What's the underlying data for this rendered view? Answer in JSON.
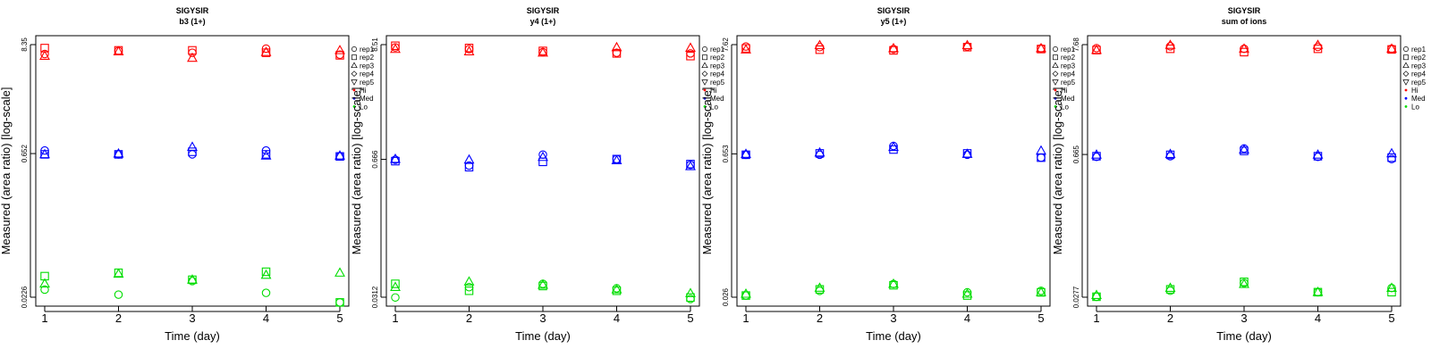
{
  "chart_data": [
    {
      "type": "scatter",
      "title": "SIGYSIR",
      "subtitle": "b3 (1+)",
      "xlabel": "Time (day)",
      "ylabel": "Measured (area ratio) [log-scale]",
      "x": [
        1,
        2,
        3,
        4,
        5
      ],
      "yscale": "log",
      "ylim": [
        0.0226,
        8.35
      ],
      "yticks": [
        "0.0226",
        "0.652",
        "8.35"
      ],
      "series": [
        {
          "group": "Hi",
          "rep": "rep1",
          "values": [
            6.7,
            7.2,
            6.9,
            7.6,
            6.6
          ]
        },
        {
          "group": "Hi",
          "rep": "rep2",
          "values": [
            7.7,
            7.3,
            7.3,
            6.9,
            6.5
          ]
        },
        {
          "group": "Hi",
          "rep": "rep3",
          "values": [
            6.4,
            7.1,
            6.1,
            7.0,
            7.3
          ]
        },
        {
          "group": "Med",
          "rep": "rep1",
          "values": [
            0.7,
            0.64,
            0.64,
            0.7,
            0.61
          ]
        },
        {
          "group": "Med",
          "rep": "rep2",
          "values": [
            0.64,
            0.64,
            0.68,
            0.64,
            0.61
          ]
        },
        {
          "group": "Med",
          "rep": "rep3",
          "values": [
            0.64,
            0.65,
            0.76,
            0.62,
            0.62
          ]
        },
        {
          "group": "Lo",
          "rep": "rep1",
          "values": [
            0.027,
            0.024,
            0.033,
            0.025,
            0.02
          ]
        },
        {
          "group": "Lo",
          "rep": "rep2",
          "values": [
            0.037,
            0.04,
            0.034,
            0.041,
            0.02
          ]
        },
        {
          "group": "Lo",
          "rep": "rep3",
          "values": [
            0.031,
            0.039,
            0.034,
            0.038,
            0.04
          ]
        }
      ]
    },
    {
      "type": "scatter",
      "title": "SIGYSIR",
      "subtitle": "y4 (1+)",
      "xlabel": "Time (day)",
      "ylabel": "Measured (area ratio) [log-scale]",
      "x": [
        1,
        2,
        3,
        4,
        5
      ],
      "yscale": "log",
      "ylim": [
        0.0312,
        8.51
      ],
      "yticks": [
        "0.0312",
        "0.666",
        "8.51"
      ],
      "series": [
        {
          "group": "Hi",
          "rep": "rep1",
          "values": [
            8.0,
            7.7,
            7.2,
            7.1,
            7.0
          ]
        },
        {
          "group": "Hi",
          "rep": "rep2",
          "values": [
            8.3,
            7.9,
            7.4,
            7.0,
            6.6
          ]
        },
        {
          "group": "Hi",
          "rep": "rep3",
          "values": [
            7.7,
            7.3,
            7.1,
            8.0,
            7.9
          ]
        },
        {
          "group": "Med",
          "rep": "rep1",
          "values": [
            0.66,
            0.58,
            0.74,
            0.67,
            0.59
          ]
        },
        {
          "group": "Med",
          "rep": "rep2",
          "values": [
            0.64,
            0.56,
            0.63,
            0.67,
            0.6
          ]
        },
        {
          "group": "Med",
          "rep": "rep3",
          "values": [
            0.67,
            0.66,
            0.7,
            0.65,
            0.57
          ]
        },
        {
          "group": "Lo",
          "rep": "rep1",
          "values": [
            0.031,
            0.039,
            0.042,
            0.038,
            0.03
          ]
        },
        {
          "group": "Lo",
          "rep": "rep2",
          "values": [
            0.042,
            0.036,
            0.04,
            0.036,
            0.031
          ]
        },
        {
          "group": "Lo",
          "rep": "rep3",
          "values": [
            0.039,
            0.044,
            0.041,
            0.037,
            0.034
          ]
        }
      ]
    },
    {
      "type": "scatter",
      "title": "SIGYSIR",
      "subtitle": "y5 (1+)",
      "xlabel": "Time (day)",
      "ylabel": "Measured (area ratio) [log-scale]",
      "x": [
        1,
        2,
        3,
        4,
        5
      ],
      "yscale": "log",
      "ylim": [
        0.026,
        7.62
      ],
      "yticks": [
        "0.026",
        "0.653",
        "7.62"
      ],
      "series": [
        {
          "group": "Hi",
          "rep": "rep1",
          "values": [
            7.3,
            7.2,
            6.9,
            7.3,
            7.0
          ]
        },
        {
          "group": "Hi",
          "rep": "rep2",
          "values": [
            7.0,
            6.8,
            6.7,
            7.2,
            6.9
          ]
        },
        {
          "group": "Hi",
          "rep": "rep3",
          "values": [
            6.8,
            7.5,
            7.0,
            7.5,
            7.0
          ]
        },
        {
          "group": "Med",
          "rep": "rep1",
          "values": [
            0.64,
            0.64,
            0.78,
            0.64,
            0.6
          ]
        },
        {
          "group": "Med",
          "rep": "rep2",
          "values": [
            0.64,
            0.66,
            0.72,
            0.66,
            0.6
          ]
        },
        {
          "group": "Med",
          "rep": "rep3",
          "values": [
            0.65,
            0.67,
            0.76,
            0.65,
            0.7
          ]
        },
        {
          "group": "Lo",
          "rep": "rep1",
          "values": [
            0.027,
            0.03,
            0.035,
            0.029,
            0.03
          ]
        },
        {
          "group": "Lo",
          "rep": "rep2",
          "values": [
            0.027,
            0.031,
            0.034,
            0.027,
            0.029
          ]
        },
        {
          "group": "Lo",
          "rep": "rep3",
          "values": [
            0.028,
            0.032,
            0.035,
            0.028,
            0.029
          ]
        }
      ]
    },
    {
      "type": "scatter",
      "title": "SIGYSIR",
      "subtitle": "sum of ions",
      "xlabel": "Time (day)",
      "ylabel": "Measured (area ratio) [log-scale]",
      "x": [
        1,
        2,
        3,
        4,
        5
      ],
      "yscale": "log",
      "ylim": [
        0.0277,
        7.68
      ],
      "yticks": [
        "0.0277",
        "0.665",
        "7.68"
      ],
      "series": [
        {
          "group": "Hi",
          "rep": "rep1",
          "values": [
            7.1,
            7.4,
            7.0,
            7.3,
            7.0
          ]
        },
        {
          "group": "Hi",
          "rep": "rep2",
          "values": [
            6.8,
            7.0,
            6.5,
            7.0,
            6.9
          ]
        },
        {
          "group": "Hi",
          "rep": "rep3",
          "values": [
            6.8,
            7.6,
            7.0,
            7.6,
            7.0
          ]
        },
        {
          "group": "Med",
          "rep": "rep1",
          "values": [
            0.63,
            0.64,
            0.76,
            0.63,
            0.6
          ]
        },
        {
          "group": "Med",
          "rep": "rep2",
          "values": [
            0.64,
            0.66,
            0.72,
            0.64,
            0.62
          ]
        },
        {
          "group": "Med",
          "rep": "rep3",
          "values": [
            0.66,
            0.67,
            0.74,
            0.66,
            0.68
          ]
        },
        {
          "group": "Lo",
          "rep": "rep1",
          "values": [
            0.028,
            0.032,
            0.038,
            0.031,
            0.034
          ]
        },
        {
          "group": "Lo",
          "rep": "rep2",
          "values": [
            0.028,
            0.033,
            0.039,
            0.031,
            0.031
          ]
        },
        {
          "group": "Lo",
          "rep": "rep3",
          "values": [
            0.029,
            0.034,
            0.037,
            0.031,
            0.034
          ]
        }
      ]
    }
  ],
  "legend": {
    "entries": [
      {
        "label": "rep1",
        "shape": "circle"
      },
      {
        "label": "rep2",
        "shape": "square"
      },
      {
        "label": "rep3",
        "shape": "triangle-up"
      },
      {
        "label": "rep4",
        "shape": "diamond"
      },
      {
        "label": "rep5",
        "shape": "triangle-down"
      },
      {
        "label": "Hi",
        "shape": "dot",
        "color": "#ff0000"
      },
      {
        "label": "Med",
        "shape": "dot",
        "color": "#0000ff"
      },
      {
        "label": "Lo",
        "shape": "dot",
        "color": "#00dd00"
      }
    ]
  },
  "colors": {
    "Hi": "#ff0000",
    "Med": "#0000ff",
    "Lo": "#00dd00",
    "axis": "#000000"
  }
}
